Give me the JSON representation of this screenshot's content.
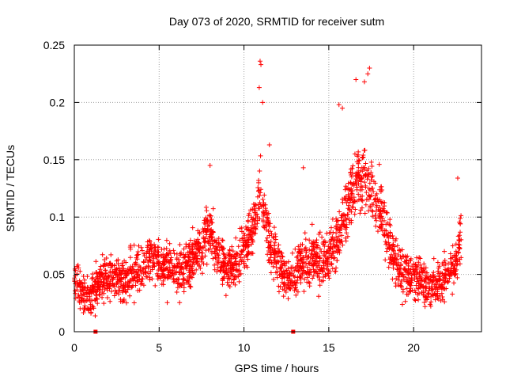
{
  "chart_data": {
    "type": "scatter",
    "title": "Day 073 of 2020, SRMTID for receiver sutm",
    "xlabel": "GPS time / hours",
    "ylabel": "SRMTID / TECUs",
    "xlim": [
      0,
      24
    ],
    "ylim": [
      0,
      0.25
    ],
    "xticks": [
      0,
      5,
      10,
      15,
      20
    ],
    "yticks": [
      0,
      0.05,
      0.1,
      0.15,
      0.2,
      0.25
    ],
    "xtick_labels": [
      "0",
      "5",
      "10",
      "15",
      "20"
    ],
    "ytick_labels": [
      "0",
      "0.05",
      "0.1",
      "0.15",
      "0.2",
      "0.25"
    ],
    "grid": true,
    "marker": "plus",
    "color": "#ff0000",
    "zero_markers": {
      "x": [
        1.25,
        12.9
      ],
      "y": [
        0,
        0
      ]
    },
    "series": [
      {
        "name": "SRMTID",
        "trend": {
          "x": [
            0,
            0.5,
            1,
            1.5,
            2,
            2.5,
            3,
            3.5,
            4,
            4.5,
            5,
            5.5,
            6,
            6.5,
            7,
            7.5,
            8,
            8.5,
            9,
            9.5,
            10,
            10.5,
            11,
            11.5,
            12,
            12.5,
            13,
            13.5,
            14,
            14.5,
            15,
            15.5,
            16,
            16.5,
            17,
            17.5,
            18,
            18.5,
            19,
            19.5,
            20,
            20.5,
            21,
            21.5,
            22,
            22.5,
            22.8
          ],
          "y": [
            0.045,
            0.033,
            0.033,
            0.045,
            0.05,
            0.048,
            0.045,
            0.05,
            0.058,
            0.065,
            0.058,
            0.055,
            0.052,
            0.055,
            0.062,
            0.075,
            0.09,
            0.065,
            0.055,
            0.06,
            0.075,
            0.09,
            0.12,
            0.08,
            0.06,
            0.045,
            0.05,
            0.06,
            0.065,
            0.06,
            0.065,
            0.08,
            0.105,
            0.125,
            0.135,
            0.12,
            0.11,
            0.08,
            0.06,
            0.05,
            0.048,
            0.042,
            0.04,
            0.042,
            0.048,
            0.06,
            0.085
          ]
        },
        "notable_points": {
          "x": [
            10.95,
            11.0,
            10.9,
            11.1,
            11.5,
            15.6,
            15.8,
            16.6,
            17.1,
            17.3,
            17.4,
            8.0,
            13.5,
            22.6
          ],
          "y": [
            0.236,
            0.233,
            0.213,
            0.2,
            0.163,
            0.198,
            0.195,
            0.22,
            0.218,
            0.225,
            0.23,
            0.145,
            0.143,
            0.134
          ]
        },
        "point_count": 2400,
        "scatter_spread": 0.03
      }
    ]
  }
}
